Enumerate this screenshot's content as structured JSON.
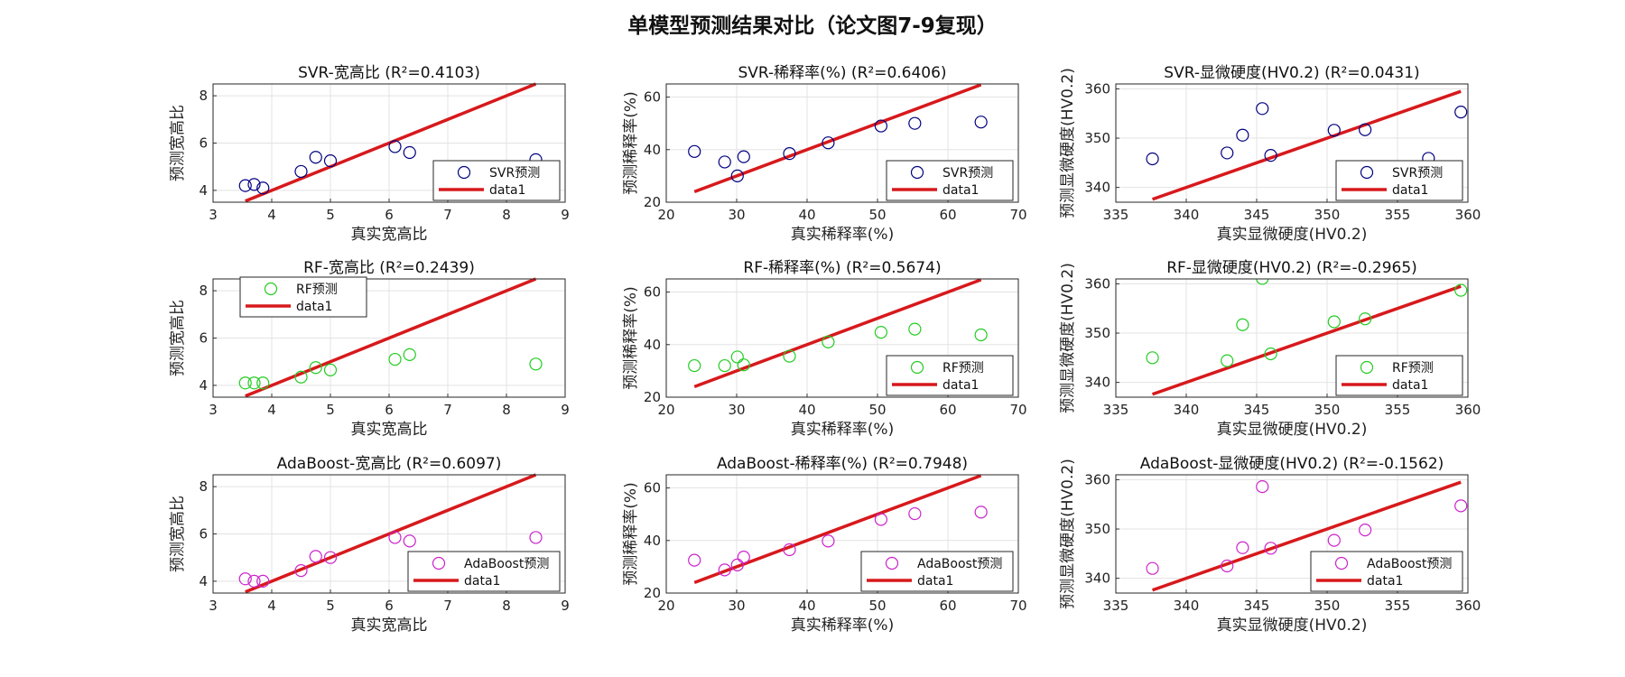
{
  "figure": {
    "suptitle": "单模型预测结果对比（论文图7-9复现）"
  },
  "chart_data": [
    {
      "type": "scatter",
      "title": "SVR-宽高比 (R²=0.4103)",
      "xlabel": "真实宽高比",
      "ylabel": "预测宽高比",
      "xlim": [
        3,
        9
      ],
      "ylim": [
        3.5,
        8.5
      ],
      "xticks": [
        3,
        4,
        5,
        6,
        7,
        8,
        9
      ],
      "yticks": [
        4,
        6,
        8
      ],
      "grid": true,
      "legend_pos": "bottom-right",
      "marker_color": "#00007f",
      "line_color": "#d7191c",
      "series": [
        {
          "name": "SVR预测",
          "x": [
            3.55,
            3.7,
            3.85,
            4.5,
            4.75,
            5.0,
            6.1,
            6.35,
            8.5
          ],
          "y": [
            4.2,
            4.25,
            4.1,
            4.8,
            5.4,
            5.25,
            5.85,
            5.6,
            5.3
          ]
        },
        {
          "name": "data1",
          "x": [
            3.55,
            8.5
          ],
          "y": [
            3.55,
            8.5
          ]
        }
      ]
    },
    {
      "type": "scatter",
      "title": "SVR-稀释率(%) (R²=0.6406)",
      "xlabel": "真实稀释率(%)",
      "ylabel": "预测稀释率(%)",
      "xlim": [
        20,
        70
      ],
      "ylim": [
        20,
        65
      ],
      "xticks": [
        20,
        30,
        40,
        50,
        60,
        70
      ],
      "yticks": [
        20,
        40,
        60
      ],
      "grid": true,
      "legend_pos": "bottom-right",
      "marker_color": "#00007f",
      "line_color": "#d7191c",
      "series": [
        {
          "name": "SVR预测",
          "x": [
            24,
            28.3,
            30.1,
            31,
            37.5,
            43,
            50.5,
            55.3,
            64.7
          ],
          "y": [
            39.3,
            35.3,
            30,
            37.3,
            38.5,
            42.6,
            49,
            50,
            50.5
          ]
        },
        {
          "name": "data1",
          "x": [
            24,
            64.7
          ],
          "y": [
            24,
            64.7
          ]
        }
      ]
    },
    {
      "type": "scatter",
      "title": "SVR-显微硬度(HV0.2) (R²=0.0431)",
      "xlabel": "真实显微硬度(HV0.2)",
      "ylabel": "预测显微硬度(HV0.2)",
      "xlim": [
        335,
        360
      ],
      "ylim": [
        337,
        361
      ],
      "xticks": [
        335,
        340,
        345,
        350,
        355,
        360
      ],
      "yticks": [
        340,
        350,
        360
      ],
      "grid": true,
      "legend_pos": "bottom-right",
      "marker_color": "#00007f",
      "line_color": "#d7191c",
      "series": [
        {
          "name": "SVR预测",
          "x": [
            337.6,
            342.9,
            344,
            345.4,
            346,
            350.5,
            352.7,
            357.2,
            359.5
          ],
          "y": [
            345.8,
            347,
            350.6,
            356,
            346.5,
            351.6,
            351.7,
            345.9,
            355.3
          ]
        },
        {
          "name": "data1",
          "x": [
            337.6,
            359.5
          ],
          "y": [
            337.6,
            359.5
          ]
        }
      ]
    },
    {
      "type": "scatter",
      "title": "RF-宽高比 (R²=0.2439)",
      "xlabel": "真实宽高比",
      "ylabel": "预测宽高比",
      "xlim": [
        3,
        9
      ],
      "ylim": [
        3.5,
        8.5
      ],
      "xticks": [
        3,
        4,
        5,
        6,
        7,
        8,
        9
      ],
      "yticks": [
        4,
        6,
        8
      ],
      "grid": true,
      "legend_pos": "top-left",
      "marker_color": "#22cc22",
      "line_color": "#d7191c",
      "series": [
        {
          "name": "RF预测",
          "x": [
            3.55,
            3.7,
            3.85,
            4.5,
            4.75,
            5.0,
            6.1,
            6.35,
            8.5
          ],
          "y": [
            4.1,
            4.1,
            4.1,
            4.35,
            4.75,
            4.65,
            5.1,
            5.3,
            4.9
          ]
        },
        {
          "name": "data1",
          "x": [
            3.55,
            8.5
          ],
          "y": [
            3.55,
            8.5
          ]
        }
      ]
    },
    {
      "type": "scatter",
      "title": "RF-稀释率(%) (R²=0.5674)",
      "xlabel": "真实稀释率(%)",
      "ylabel": "预测稀释率(%)",
      "xlim": [
        20,
        70
      ],
      "ylim": [
        20,
        65
      ],
      "xticks": [
        20,
        30,
        40,
        50,
        60,
        70
      ],
      "yticks": [
        20,
        40,
        60
      ],
      "grid": true,
      "legend_pos": "bottom-right",
      "marker_color": "#22cc22",
      "line_color": "#d7191c",
      "series": [
        {
          "name": "RF预测",
          "x": [
            24,
            28.3,
            30.1,
            31,
            37.5,
            43,
            50.5,
            55.3,
            64.7
          ],
          "y": [
            32,
            32,
            35.3,
            32.3,
            35.6,
            41,
            44.7,
            45.9,
            43.7
          ]
        },
        {
          "name": "data1",
          "x": [
            24,
            64.7
          ],
          "y": [
            24,
            64.7
          ]
        }
      ]
    },
    {
      "type": "scatter",
      "title": "RF-显微硬度(HV0.2) (R²=-0.2965)",
      "xlabel": "真实显微硬度(HV0.2)",
      "ylabel": "预测显微硬度(HV0.2)",
      "xlim": [
        335,
        360
      ],
      "ylim": [
        337,
        361
      ],
      "xticks": [
        335,
        340,
        345,
        350,
        355,
        360
      ],
      "yticks": [
        340,
        350,
        360
      ],
      "grid": true,
      "legend_pos": "bottom-right",
      "marker_color": "#22cc22",
      "line_color": "#d7191c",
      "series": [
        {
          "name": "RF预测",
          "x": [
            337.6,
            342.9,
            344,
            345.4,
            346,
            350.5,
            352.7,
            359.5
          ],
          "y": [
            345,
            344.4,
            351.7,
            361.1,
            345.8,
            352.3,
            352.9,
            358.7
          ]
        },
        {
          "name": "data1",
          "x": [
            337.6,
            359.5
          ],
          "y": [
            337.6,
            359.5
          ]
        }
      ]
    },
    {
      "type": "scatter",
      "title": "AdaBoost-宽高比 (R²=0.6097)",
      "xlabel": "真实宽高比",
      "ylabel": "预测宽高比",
      "xlim": [
        3,
        9
      ],
      "ylim": [
        3.5,
        8.5
      ],
      "xticks": [
        3,
        4,
        5,
        6,
        7,
        8,
        9
      ],
      "yticks": [
        4,
        6,
        8
      ],
      "grid": true,
      "legend_pos": "bottom-right",
      "marker_color": "#cc22cc",
      "line_color": "#d7191c",
      "series": [
        {
          "name": "AdaBoost预测",
          "x": [
            3.55,
            3.7,
            3.85,
            4.5,
            4.75,
            5.0,
            6.1,
            6.35,
            8.5
          ],
          "y": [
            4.1,
            4.0,
            4.0,
            4.45,
            5.05,
            5.0,
            5.85,
            5.7,
            5.85
          ]
        },
        {
          "name": "data1",
          "x": [
            3.55,
            8.5
          ],
          "y": [
            3.55,
            8.5
          ]
        }
      ]
    },
    {
      "type": "scatter",
      "title": "AdaBoost-稀释率(%) (R²=0.7948)",
      "xlabel": "真实稀释率(%)",
      "ylabel": "预测稀释率(%)",
      "xlim": [
        20,
        70
      ],
      "ylim": [
        20,
        65
      ],
      "xticks": [
        20,
        30,
        40,
        50,
        60,
        70
      ],
      "yticks": [
        20,
        40,
        60
      ],
      "grid": true,
      "legend_pos": "bottom-right",
      "marker_color": "#cc22cc",
      "line_color": "#d7191c",
      "series": [
        {
          "name": "AdaBoost预测",
          "x": [
            24,
            28.3,
            30.1,
            31,
            37.5,
            43,
            50.5,
            55.3,
            64.7
          ],
          "y": [
            32.5,
            28.8,
            30.7,
            33.7,
            36.5,
            39.8,
            48,
            50.2,
            50.8
          ]
        },
        {
          "name": "data1",
          "x": [
            24,
            64.7
          ],
          "y": [
            24,
            64.7
          ]
        }
      ]
    },
    {
      "type": "scatter",
      "title": "AdaBoost-显微硬度(HV0.2) (R²=-0.1562)",
      "xlabel": "真实显微硬度(HV0.2)",
      "ylabel": "预测显微硬度(HV0.2)",
      "xlim": [
        335,
        360
      ],
      "ylim": [
        337,
        361
      ],
      "xticks": [
        335,
        340,
        345,
        350,
        355,
        360
      ],
      "yticks": [
        340,
        350,
        360
      ],
      "grid": true,
      "legend_pos": "bottom-right",
      "marker_color": "#cc22cc",
      "line_color": "#d7191c",
      "series": [
        {
          "name": "AdaBoost预测",
          "x": [
            337.6,
            342.9,
            344,
            345.4,
            346,
            350.5,
            352.7,
            359.5
          ],
          "y": [
            342,
            342.5,
            346.2,
            358.6,
            346.1,
            347.7,
            349.8,
            354.7
          ]
        },
        {
          "name": "data1",
          "x": [
            337.6,
            359.5
          ],
          "y": [
            337.6,
            359.5
          ]
        }
      ]
    }
  ]
}
